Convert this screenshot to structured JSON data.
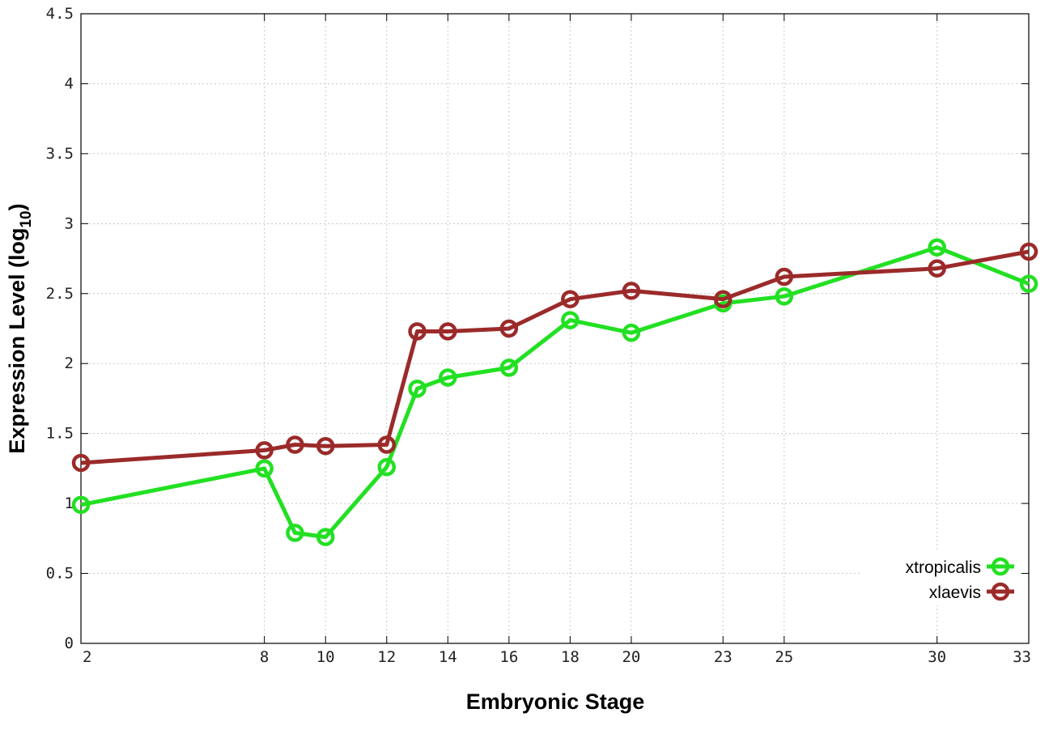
{
  "chart_data": {
    "type": "line",
    "xlabel": "Embryonic Stage",
    "ylabel": "Expression Level (log",
    "ylabel_sub": "10",
    "ylabel_end": ")",
    "xlim": [
      2,
      33
    ],
    "ylim": [
      0,
      4.5
    ],
    "grid": true,
    "legend_position": "bottom-right",
    "x_tick_values": [
      2,
      8,
      10,
      12,
      14,
      16,
      18,
      20,
      23,
      25,
      30,
      33
    ],
    "x_tick_labels": [
      "2",
      "8",
      "10",
      "12",
      "14",
      "16",
      "18",
      "20",
      "23",
      "25",
      "30",
      "33"
    ],
    "y_tick_values": [
      0,
      0.5,
      1,
      1.5,
      2,
      2.5,
      3,
      3.5,
      4,
      4.5
    ],
    "y_tick_labels": [
      "0",
      "0.5",
      "1",
      "1.5",
      "2",
      "2.5",
      "3",
      "3.5",
      "4",
      "4.5"
    ],
    "series": [
      {
        "name": "xtropicalis",
        "color": "#22e022",
        "x": [
          2,
          8,
          9,
          10,
          12,
          13,
          14,
          16,
          18,
          20,
          23,
          25,
          30,
          33
        ],
        "y": [
          0.99,
          1.25,
          0.79,
          0.76,
          1.26,
          1.82,
          1.9,
          1.97,
          2.31,
          2.22,
          2.43,
          2.48,
          2.83,
          2.57
        ]
      },
      {
        "name": "xlaevis",
        "color": "#9b2a2a",
        "x": [
          2,
          8,
          9,
          10,
          12,
          13,
          14,
          16,
          18,
          20,
          23,
          25,
          30,
          33
        ],
        "y": [
          1.29,
          1.38,
          1.42,
          1.41,
          1.42,
          2.23,
          2.23,
          2.25,
          2.46,
          2.52,
          2.46,
          2.62,
          2.68,
          2.8
        ]
      }
    ]
  }
}
